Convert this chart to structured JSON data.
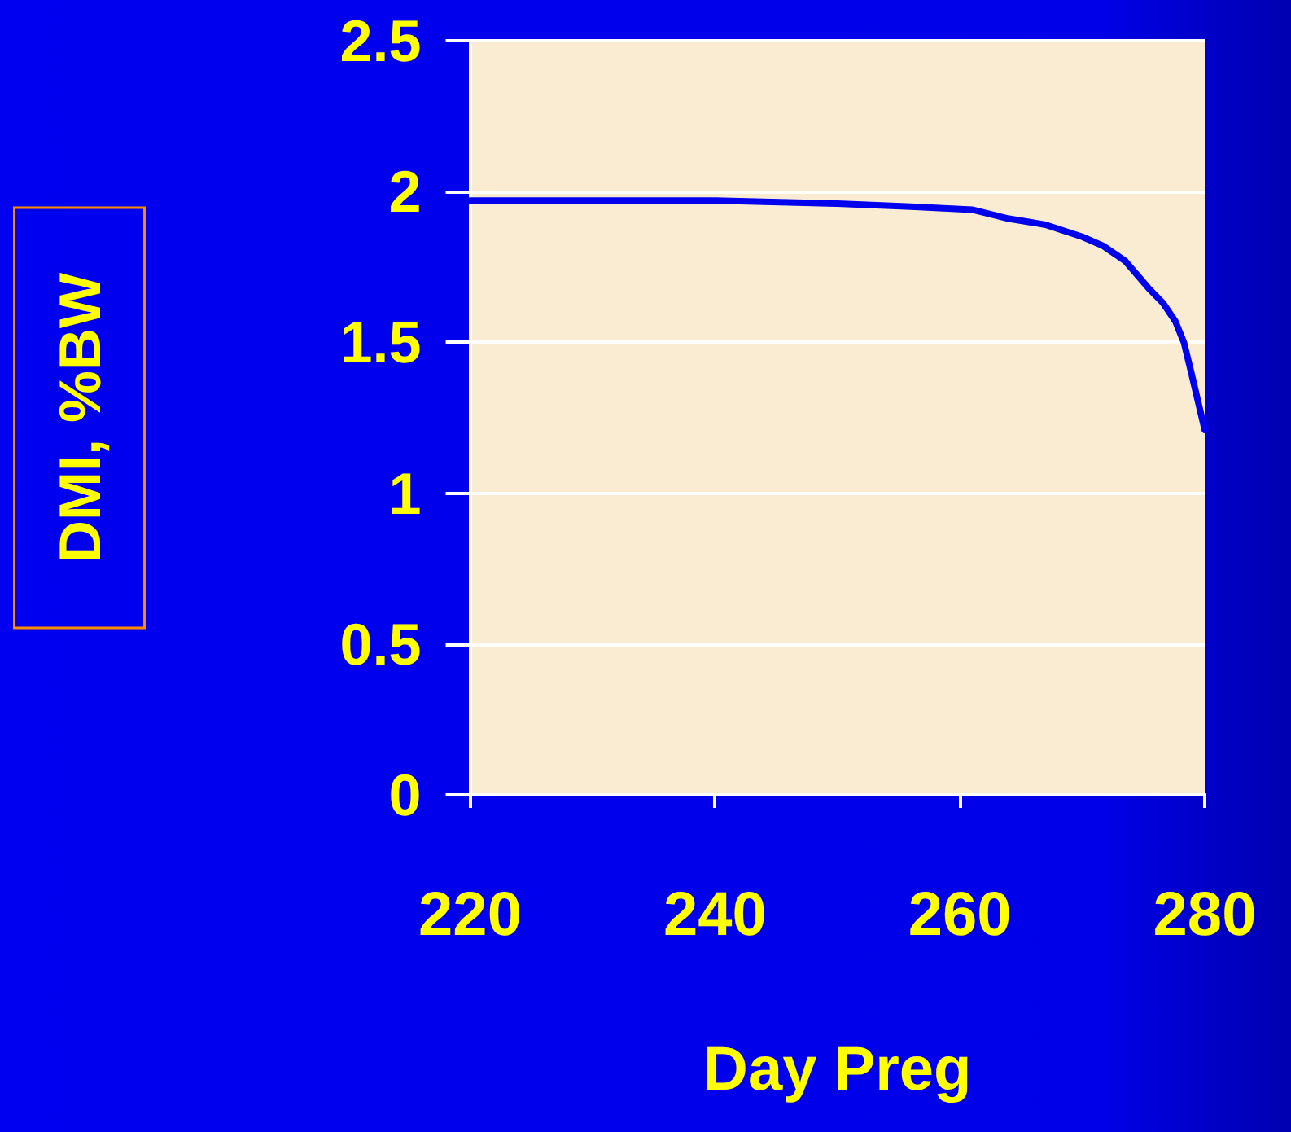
{
  "chart_data": {
    "type": "line",
    "xlabel": "Day Preg",
    "ylabel": "DMI, %BW",
    "series": [
      {
        "color": "#0000ee",
        "x": [
          220,
          230,
          240,
          250,
          256,
          261,
          264,
          267,
          270,
          271.7,
          273.5,
          275.4,
          276.6,
          277.6,
          278.3,
          278.9,
          280
        ],
        "values": [
          1.97,
          1.97,
          1.97,
          1.96,
          1.95,
          1.94,
          1.91,
          1.89,
          1.85,
          1.82,
          1.77,
          1.68,
          1.63,
          1.57,
          1.5,
          1.4,
          1.21
        ]
      }
    ],
    "xlim": [
      220,
      280
    ],
    "xticks": [
      220,
      240,
      260,
      280
    ],
    "ylim": [
      0,
      2.5
    ],
    "yticks": [
      0,
      0.5,
      1,
      1.5,
      2,
      2.5
    ],
    "grid": "y",
    "marker": "none",
    "line_style": "solid"
  }
}
